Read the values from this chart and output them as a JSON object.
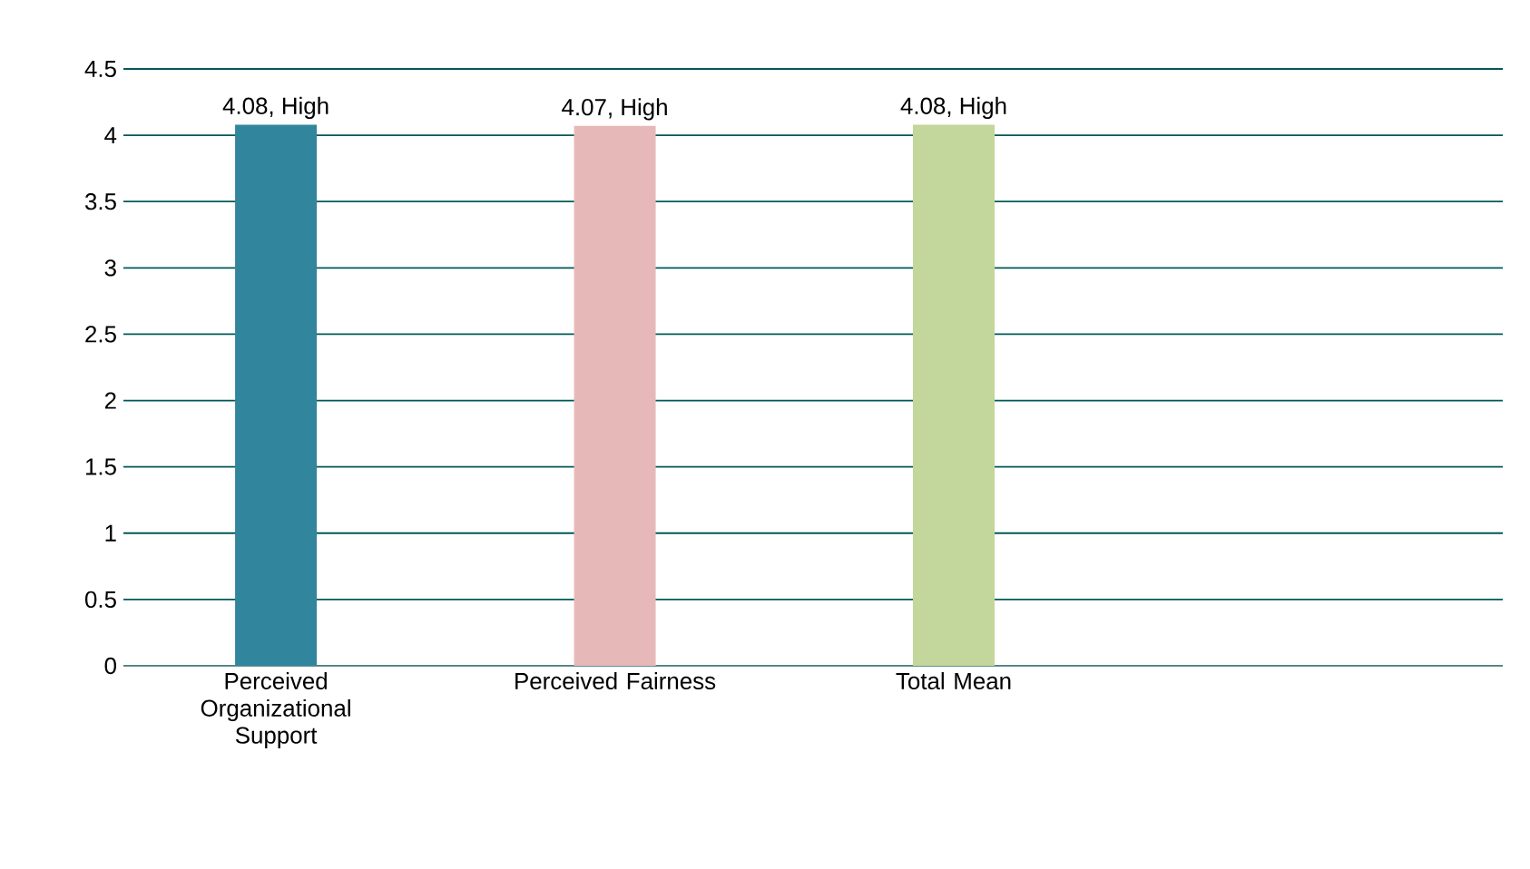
{
  "chart_data": {
    "type": "bar",
    "categories": [
      "Perceived Organizational Support",
      "Perceived Fairness",
      "Total Mean",
      null
    ],
    "values": [
      4.08,
      4.07,
      4.08,
      null
    ],
    "colors": [
      "#31859c",
      "#e6b9b8",
      "#c3d69b",
      "#000000"
    ],
    "value_labels": [
      "4.08, High",
      "4.07, High",
      "4.08, High",
      null
    ],
    "ylim": [
      0,
      4.5
    ],
    "yticks": [
      0,
      0.5,
      1,
      1.5,
      2,
      2.5,
      3,
      3.5,
      4,
      4.5
    ],
    "grid": "y"
  }
}
